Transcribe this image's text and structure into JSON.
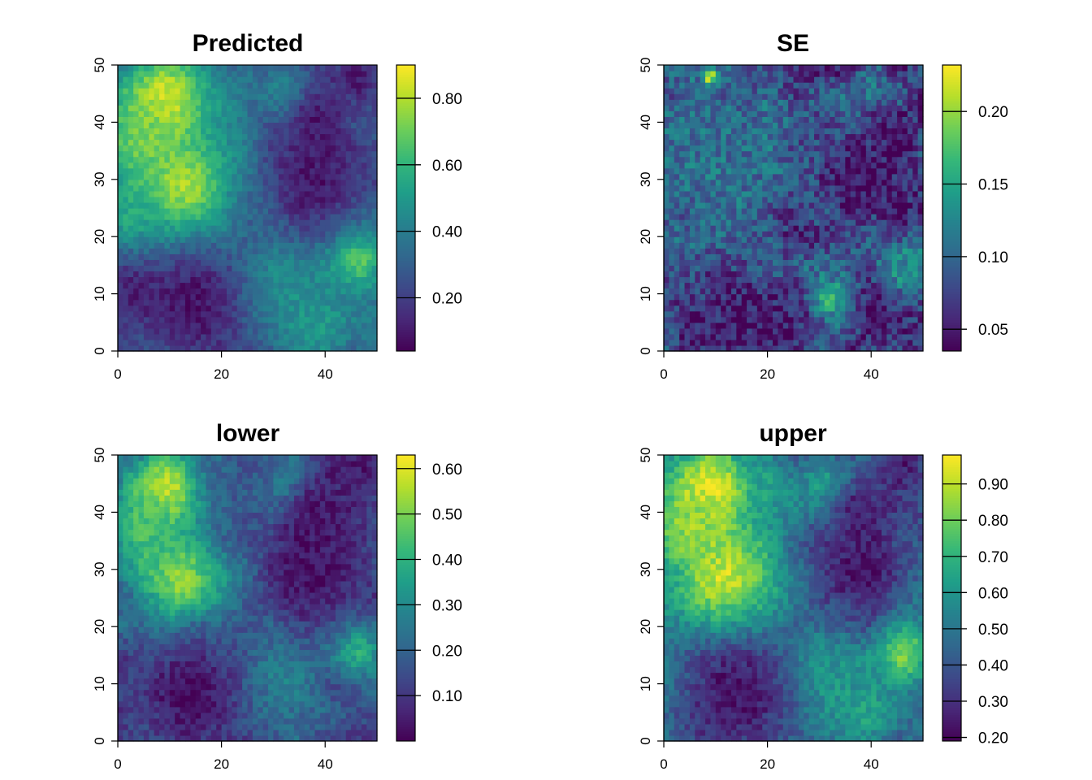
{
  "figure": {
    "colormap": "viridis",
    "viridis_stops": [
      "#440154",
      "#482878",
      "#3e4989",
      "#31688e",
      "#26828e",
      "#1f9e89",
      "#35b779",
      "#6ece58",
      "#b5de2b",
      "#fde725"
    ]
  },
  "chart_data": [
    {
      "type": "heatmap",
      "title": "Predicted",
      "xlabel": "",
      "ylabel": "",
      "xlim": [
        0,
        50
      ],
      "ylim": [
        0,
        50
      ],
      "grid_size": [
        50,
        50
      ],
      "x_ticks": [
        0,
        20,
        40
      ],
      "y_ticks": [
        0,
        10,
        20,
        30,
        40,
        50
      ],
      "x_tick_labels": [
        "0",
        "20",
        "40"
      ],
      "y_tick_labels": [
        "0",
        "10",
        "20",
        "30",
        "40",
        "50"
      ],
      "legend": {
        "position": "right",
        "range": [
          0.04,
          0.9
        ],
        "ticks": [
          0.2,
          0.4,
          0.6,
          0.8
        ],
        "tick_labels": [
          "0.20",
          "0.40",
          "0.60",
          "0.80"
        ]
      },
      "hotspots": [
        {
          "x": 9,
          "y": 44,
          "value": 0.87,
          "radius": 6
        },
        {
          "x": 12,
          "y": 28,
          "value": 0.84,
          "radius": 7
        },
        {
          "x": 5,
          "y": 37,
          "value": 0.72,
          "radius": 5
        },
        {
          "x": 4,
          "y": 22,
          "value": 0.6,
          "radius": 5
        },
        {
          "x": 33,
          "y": 44,
          "value": 0.6,
          "radius": 3
        },
        {
          "x": 46,
          "y": 16,
          "value": 0.72,
          "radius": 4
        },
        {
          "x": 30,
          "y": 12,
          "value": 0.5,
          "radius": 6
        },
        {
          "x": 38,
          "y": 5,
          "value": 0.5,
          "radius": 6
        },
        {
          "x": 38,
          "y": 30,
          "value": 0.08,
          "radius": 7
        },
        {
          "x": 38,
          "y": 40,
          "value": 0.1,
          "radius": 5
        },
        {
          "x": 14,
          "y": 8,
          "value": 0.08,
          "radius": 8
        },
        {
          "x": 3,
          "y": 10,
          "value": 0.12,
          "radius": 5
        },
        {
          "x": 46,
          "y": 48,
          "value": 0.1,
          "radius": 4
        }
      ],
      "base": 0.32,
      "noise": 0.06
    },
    {
      "type": "heatmap",
      "title": "SE",
      "xlabel": "",
      "ylabel": "",
      "xlim": [
        0,
        50
      ],
      "ylim": [
        0,
        50
      ],
      "grid_size": [
        50,
        50
      ],
      "x_ticks": [
        0,
        20,
        40
      ],
      "y_ticks": [
        0,
        10,
        20,
        30,
        40,
        50
      ],
      "x_tick_labels": [
        "0",
        "20",
        "40"
      ],
      "y_tick_labels": [
        "0",
        "10",
        "20",
        "30",
        "40",
        "50"
      ],
      "legend": {
        "position": "right",
        "range": [
          0.035,
          0.232
        ],
        "ticks": [
          0.05,
          0.1,
          0.15,
          0.2
        ],
        "tick_labels": [
          "0.05",
          "0.10",
          "0.15",
          "0.20"
        ]
      },
      "hotspots": [
        {
          "x": 9,
          "y": 36,
          "value": 0.11,
          "radius": 10
        },
        {
          "x": 12,
          "y": 27,
          "value": 0.11,
          "radius": 7
        },
        {
          "x": 9,
          "y": 48,
          "value": 0.22,
          "radius": 1
        },
        {
          "x": 32,
          "y": 9,
          "value": 0.17,
          "radius": 2
        },
        {
          "x": 46,
          "y": 15,
          "value": 0.13,
          "radius": 4
        },
        {
          "x": 38,
          "y": 30,
          "value": 0.04,
          "radius": 6
        },
        {
          "x": 14,
          "y": 6,
          "value": 0.045,
          "radius": 7
        }
      ],
      "base": 0.075,
      "noise": 0.03
    },
    {
      "type": "heatmap",
      "title": "lower",
      "xlabel": "",
      "ylabel": "",
      "xlim": [
        0,
        50
      ],
      "ylim": [
        0,
        50
      ],
      "grid_size": [
        50,
        50
      ],
      "x_ticks": [
        0,
        20,
        40
      ],
      "y_ticks": [
        0,
        10,
        20,
        30,
        40,
        50
      ],
      "x_tick_labels": [
        "0",
        "20",
        "40"
      ],
      "y_tick_labels": [
        "0",
        "10",
        "20",
        "30",
        "40",
        "50"
      ],
      "legend": {
        "position": "right",
        "range": [
          0.0,
          0.63
        ],
        "ticks": [
          0.1,
          0.2,
          0.3,
          0.4,
          0.5,
          0.6
        ],
        "tick_labels": [
          "0.10",
          "0.20",
          "0.30",
          "0.40",
          "0.50",
          "0.60"
        ]
      },
      "hotspots": [
        {
          "x": 9,
          "y": 44,
          "value": 0.6,
          "radius": 5
        },
        {
          "x": 12,
          "y": 28,
          "value": 0.55,
          "radius": 6
        },
        {
          "x": 5,
          "y": 37,
          "value": 0.45,
          "radius": 5
        },
        {
          "x": 33,
          "y": 44,
          "value": 0.4,
          "radius": 3
        },
        {
          "x": 46,
          "y": 16,
          "value": 0.42,
          "radius": 3
        },
        {
          "x": 30,
          "y": 12,
          "value": 0.3,
          "radius": 6
        },
        {
          "x": 38,
          "y": 30,
          "value": 0.02,
          "radius": 7
        },
        {
          "x": 38,
          "y": 40,
          "value": 0.03,
          "radius": 5
        },
        {
          "x": 14,
          "y": 8,
          "value": 0.02,
          "radius": 8
        },
        {
          "x": 46,
          "y": 48,
          "value": 0.04,
          "radius": 4
        }
      ],
      "base": 0.17,
      "noise": 0.05
    },
    {
      "type": "heatmap",
      "title": "upper",
      "xlabel": "",
      "ylabel": "",
      "xlim": [
        0,
        50
      ],
      "ylim": [
        0,
        50
      ],
      "grid_size": [
        50,
        50
      ],
      "x_ticks": [
        0,
        20,
        40
      ],
      "y_ticks": [
        0,
        10,
        20,
        30,
        40,
        50
      ],
      "x_tick_labels": [
        "0",
        "20",
        "40"
      ],
      "y_tick_labels": [
        "0",
        "10",
        "20",
        "30",
        "40",
        "50"
      ],
      "legend": {
        "position": "right",
        "range": [
          0.19,
          0.98
        ],
        "ticks": [
          0.2,
          0.3,
          0.4,
          0.5,
          0.6,
          0.7,
          0.8,
          0.9
        ],
        "tick_labels": [
          "0.20",
          "0.30",
          "0.40",
          "0.50",
          "0.60",
          "0.70",
          "0.80",
          "0.90"
        ]
      },
      "hotspots": [
        {
          "x": 9,
          "y": 44,
          "value": 0.97,
          "radius": 6
        },
        {
          "x": 12,
          "y": 28,
          "value": 0.95,
          "radius": 7
        },
        {
          "x": 5,
          "y": 37,
          "value": 0.85,
          "radius": 5
        },
        {
          "x": 33,
          "y": 44,
          "value": 0.8,
          "radius": 3
        },
        {
          "x": 46,
          "y": 16,
          "value": 0.88,
          "radius": 4
        },
        {
          "x": 30,
          "y": 12,
          "value": 0.65,
          "radius": 6
        },
        {
          "x": 38,
          "y": 5,
          "value": 0.65,
          "radius": 5
        },
        {
          "x": 38,
          "y": 30,
          "value": 0.22,
          "radius": 7
        },
        {
          "x": 38,
          "y": 40,
          "value": 0.25,
          "radius": 5
        },
        {
          "x": 14,
          "y": 8,
          "value": 0.22,
          "radius": 8
        },
        {
          "x": 46,
          "y": 48,
          "value": 0.25,
          "radius": 4
        }
      ],
      "base": 0.48,
      "noise": 0.07
    }
  ]
}
